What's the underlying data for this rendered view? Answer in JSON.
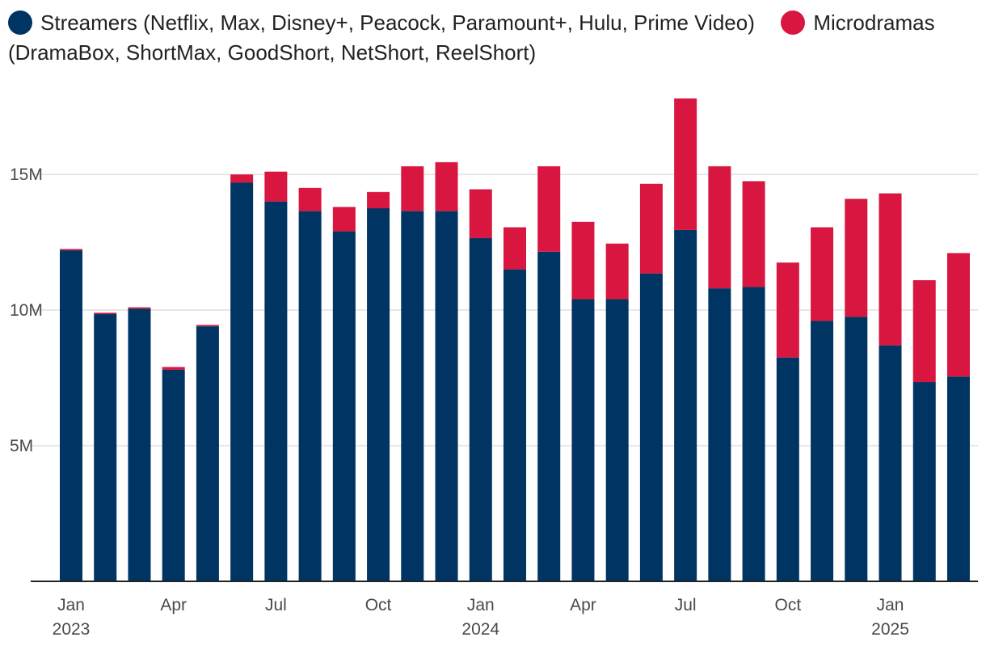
{
  "colors": {
    "streamers": "#003462",
    "microdramas": "#d8163f"
  },
  "chart_data": {
    "type": "bar",
    "stacked": true,
    "title": "",
    "xlabel": "",
    "ylabel": "",
    "ylim": [
      0,
      18000000
    ],
    "grid": true,
    "legend_position": "top-left",
    "legend": [
      {
        "name": "Streamers (Netflix, Max, Disney+, Peacock, Paramount+, Hulu, Prime Video)",
        "color": "#003462"
      },
      {
        "name": "Microdramas (DramaBox, ShortMax, GoodShort, NetShort, ReelShort)",
        "color": "#d8163f"
      }
    ],
    "y_ticks": [
      {
        "value": 5000000,
        "label": "5M"
      },
      {
        "value": 10000000,
        "label": "10M"
      },
      {
        "value": 15000000,
        "label": "15M"
      }
    ],
    "x_ticks": [
      {
        "index": 0,
        "label": "Jan",
        "year": "2023"
      },
      {
        "index": 3,
        "label": "Apr",
        "year": ""
      },
      {
        "index": 6,
        "label": "Jul",
        "year": ""
      },
      {
        "index": 9,
        "label": "Oct",
        "year": ""
      },
      {
        "index": 12,
        "label": "Jan",
        "year": "2024"
      },
      {
        "index": 15,
        "label": "Apr",
        "year": ""
      },
      {
        "index": 18,
        "label": "Jul",
        "year": ""
      },
      {
        "index": 21,
        "label": "Oct",
        "year": ""
      },
      {
        "index": 24,
        "label": "Jan",
        "year": "2025"
      }
    ],
    "categories": [
      "Jan 2023",
      "Feb 2023",
      "Mar 2023",
      "Apr 2023",
      "May 2023",
      "Jun 2023",
      "Jul 2023",
      "Aug 2023",
      "Sep 2023",
      "Oct 2023",
      "Nov 2023",
      "Dec 2023",
      "Jan 2024",
      "Feb 2024",
      "Mar 2024",
      "Apr 2024",
      "May 2024",
      "Jun 2024",
      "Jul 2024",
      "Aug 2024",
      "Sep 2024",
      "Oct 2024",
      "Nov 2024",
      "Dec 2024",
      "Jan 2025",
      "Feb 2025",
      "Mar 2025"
    ],
    "series": [
      {
        "name": "Streamers",
        "color": "#003462",
        "values": [
          12200000,
          9850000,
          10050000,
          7800000,
          9400000,
          14700000,
          14000000,
          13650000,
          12900000,
          13750000,
          13650000,
          13650000,
          12650000,
          11500000,
          12150000,
          10400000,
          10400000,
          11350000,
          12950000,
          10800000,
          10850000,
          8250000,
          9600000,
          9750000,
          8700000,
          7350000,
          7550000
        ]
      },
      {
        "name": "Microdramas",
        "color": "#d8163f",
        "values": [
          50000,
          50000,
          50000,
          100000,
          50000,
          300000,
          1100000,
          850000,
          900000,
          600000,
          1650000,
          1800000,
          1800000,
          1550000,
          3150000,
          2850000,
          2050000,
          3300000,
          4850000,
          4500000,
          3900000,
          3500000,
          3450000,
          4350000,
          5600000,
          3750000,
          4550000
        ]
      }
    ]
  }
}
